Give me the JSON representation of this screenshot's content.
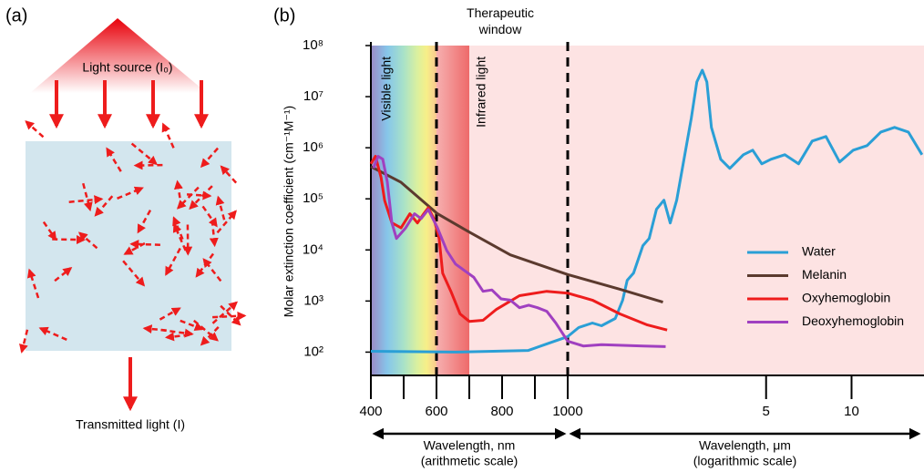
{
  "panel_a": {
    "label": "(a)",
    "source": "Light source (I₀)",
    "transmitted": "Transmitted light (I)"
  },
  "chart_data": {
    "type": "line",
    "panel_label": "(b)",
    "ylabel": "Molar extinction coefficient (cm⁻¹M⁻¹)",
    "yscale": "log",
    "ylim": [
      35,
      100000000
    ],
    "yticks": [
      {
        "value": 100,
        "label": "10²"
      },
      {
        "value": 1000,
        "label": "10³"
      },
      {
        "value": 10000,
        "label": "10⁴"
      },
      {
        "value": 100000,
        "label": "10⁵"
      },
      {
        "value": 1000000,
        "label": "10⁶"
      },
      {
        "value": 10000000,
        "label": "10⁷"
      },
      {
        "value": 100000000,
        "label": "10⁸"
      }
    ],
    "xscale": [
      "linear",
      "log"
    ],
    "xsplit": 1000,
    "xlim": [
      400,
      18000
    ],
    "xticks": [
      400,
      600,
      800,
      1000,
      {
        "value": 5000,
        "label": "5"
      },
      {
        "value": 10000,
        "label": "10"
      }
    ],
    "xticks_minor": [
      500,
      700,
      900
    ],
    "xlabels": [
      [
        "Wavelength, nm",
        "(arithmetic scale)"
      ],
      [
        "Wavelength, μm",
        "(logarithmic scale)"
      ]
    ],
    "bands": [
      {
        "label": "Visible light",
        "range": [
          400,
          600
        ]
      },
      {
        "label": "Infrared light",
        "range": [
          600,
          700
        ]
      }
    ],
    "therapeutic_window": {
      "label": "Therapeutic window",
      "range": [
        600,
        1000
      ]
    },
    "legend": "right",
    "series": [
      {
        "name": "Water",
        "color": "#2a9fd6",
        "x": [
          400,
          658,
          880,
          936,
          1000,
          1093,
          1222,
          1316,
          1471,
          1562,
          1621,
          1707,
          1840,
          1937,
          2054,
          2183,
          2297,
          2421,
          2569,
          2725,
          2851,
          2979,
          3092,
          3208,
          3459,
          3724,
          4160,
          4485,
          4827,
          5200,
          5818,
          6502,
          7265,
          8125,
          9080,
          10140,
          11340,
          12680,
          14180,
          15850,
          17710
        ],
        "values": [
          104,
          100,
          108,
          145,
          201,
          302,
          371,
          328,
          456,
          1040,
          2550,
          3540,
          12100,
          16800,
          62400,
          94000,
          33700,
          94000,
          594000,
          3760000,
          19400000,
          33000000,
          19400000,
          2500000,
          594000,
          395000,
          730000,
          896000,
          484000,
          594000,
          730000,
          484000,
          1350000,
          1660000,
          526000,
          896000,
          1100000,
          2030000,
          2500000,
          2030000,
          730000
        ]
      },
      {
        "name": "Melanin",
        "color": "#5b3a2e",
        "x": [
          400,
          492,
          603,
          700,
          825,
          1000,
          1527,
          2165
        ],
        "values": [
          428000,
          210000,
          51000,
          22400,
          8000,
          3300,
          1700,
          950
        ]
      },
      {
        "name": "Oxyhemoglobin",
        "color": "#ee1c1c",
        "x": [
          400,
          414,
          431,
          442,
          464,
          492,
          519,
          542,
          561,
          575,
          592,
          608,
          619,
          644,
          672,
          700,
          742,
          783,
          853,
          936,
          1000,
          1222,
          1527,
          1908,
          2240
        ],
        "values": [
          484000,
          680000,
          260000,
          93000,
          34000,
          27000,
          51000,
          33700,
          51000,
          67000,
          41000,
          16800,
          3500,
          1550,
          560,
          400,
          420,
          690,
          1270,
          1550,
          1430,
          1040,
          560,
          340,
          270
        ]
      },
      {
        "name": "Deoxyhemoglobin",
        "color": "#a040c0",
        "x": [
          408,
          422,
          436,
          450,
          464,
          478,
          506,
          533,
          553,
          575,
          603,
          631,
          658,
          714,
          742,
          769,
          797,
          825,
          853,
          881,
          908,
          936,
          964,
          1000,
          1135,
          1316,
          1850,
          2213
        ],
        "values": [
          400000,
          680000,
          600000,
          215000,
          34000,
          16800,
          27000,
          51000,
          41000,
          62000,
          27000,
          9800,
          5300,
          2900,
          1550,
          1650,
          1100,
          1040,
          740,
          830,
          740,
          630,
          370,
          164,
          132,
          140,
          132,
          128
        ]
      }
    ]
  }
}
